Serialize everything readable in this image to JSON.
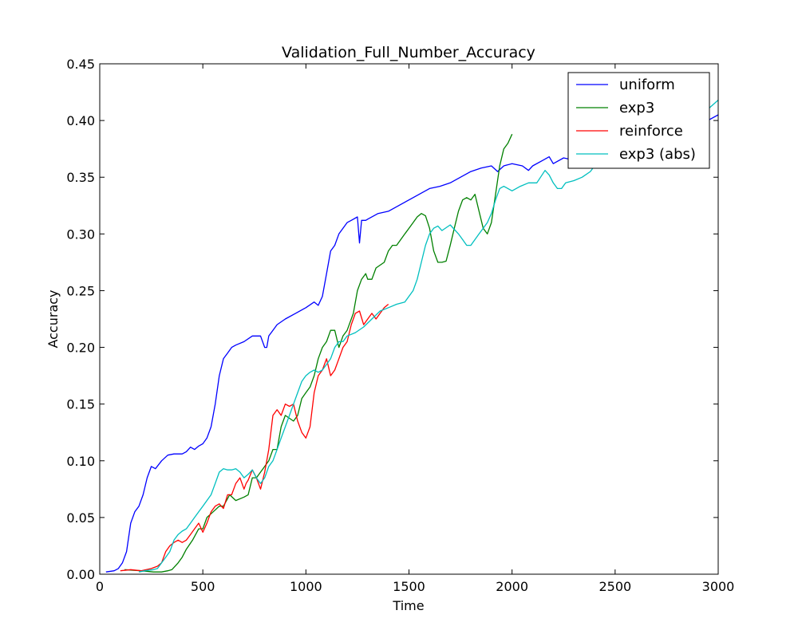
{
  "chart_data": {
    "type": "line",
    "title": "Validation_Full_Number_Accuracy",
    "xlabel": "Time",
    "ylabel": "Accuracy",
    "xlim": [
      0,
      3000
    ],
    "ylim": [
      0,
      0.45
    ],
    "xticks": [
      0,
      500,
      1000,
      1500,
      2000,
      2500,
      3000
    ],
    "xtick_labels": [
      "0",
      "500",
      "1000",
      "1500",
      "2000",
      "2500",
      "3000"
    ],
    "yticks": [
      0,
      0.05,
      0.1,
      0.15,
      0.2,
      0.25,
      0.3,
      0.35,
      0.4,
      0.45
    ],
    "ytick_labels": [
      "0.00",
      "0.05",
      "0.10",
      "0.15",
      "0.20",
      "0.25",
      "0.30",
      "0.35",
      "0.40",
      "0.45"
    ],
    "grid": false,
    "legend_position": "top-right",
    "series": [
      {
        "name": "uniform",
        "color": "#0000ff",
        "x": [
          30,
          70,
          90,
          110,
          130,
          150,
          170,
          190,
          210,
          230,
          250,
          270,
          300,
          330,
          360,
          400,
          420,
          440,
          460,
          480,
          500,
          520,
          540,
          560,
          580,
          600,
          620,
          640,
          660,
          700,
          740,
          760,
          780,
          800,
          810,
          820,
          840,
          860,
          900,
          950,
          1000,
          1040,
          1060,
          1080,
          1100,
          1120,
          1140,
          1160,
          1180,
          1200,
          1220,
          1250,
          1260,
          1270,
          1290,
          1300,
          1350,
          1400,
          1450,
          1500,
          1550,
          1600,
          1650,
          1700,
          1750,
          1800,
          1850,
          1900,
          1930,
          1960,
          2000,
          2050,
          2080,
          2100,
          2150,
          2180,
          2200,
          2250,
          2300,
          2350,
          2400,
          2500,
          2600,
          2700,
          2800,
          2900,
          3000
        ],
        "y": [
          0.002,
          0.003,
          0.005,
          0.01,
          0.02,
          0.045,
          0.055,
          0.06,
          0.07,
          0.085,
          0.095,
          0.093,
          0.1,
          0.105,
          0.106,
          0.106,
          0.108,
          0.112,
          0.11,
          0.113,
          0.115,
          0.12,
          0.13,
          0.15,
          0.175,
          0.19,
          0.195,
          0.2,
          0.202,
          0.205,
          0.21,
          0.21,
          0.21,
          0.2,
          0.2,
          0.21,
          0.215,
          0.22,
          0.225,
          0.23,
          0.235,
          0.24,
          0.237,
          0.245,
          0.265,
          0.285,
          0.29,
          0.3,
          0.305,
          0.31,
          0.312,
          0.315,
          0.292,
          0.312,
          0.312,
          0.313,
          0.318,
          0.32,
          0.325,
          0.33,
          0.335,
          0.34,
          0.342,
          0.345,
          0.35,
          0.355,
          0.358,
          0.36,
          0.355,
          0.36,
          0.362,
          0.36,
          0.356,
          0.36,
          0.365,
          0.368,
          0.362,
          0.367,
          0.365,
          0.37,
          0.373,
          0.378,
          0.382,
          0.388,
          0.39,
          0.395,
          0.405
        ]
      },
      {
        "name": "exp3",
        "color": "#008000",
        "x": [
          120,
          200,
          260,
          300,
          330,
          350,
          380,
          400,
          420,
          450,
          480,
          500,
          520,
          550,
          580,
          600,
          630,
          660,
          700,
          720,
          740,
          760,
          780,
          800,
          820,
          840,
          860,
          880,
          900,
          940,
          960,
          980,
          1000,
          1020,
          1040,
          1060,
          1080,
          1100,
          1120,
          1140,
          1160,
          1180,
          1200,
          1230,
          1250,
          1270,
          1290,
          1300,
          1320,
          1340,
          1380,
          1400,
          1420,
          1440,
          1460,
          1480,
          1500,
          1520,
          1540,
          1560,
          1580,
          1600,
          1620,
          1640,
          1660,
          1680,
          1700,
          1720,
          1740,
          1760,
          1780,
          1800,
          1820,
          1840,
          1860,
          1880,
          1900,
          1920,
          1940,
          1960,
          1980,
          2000
        ],
        "y": [
          0.004,
          0.003,
          0.002,
          0.002,
          0.003,
          0.004,
          0.01,
          0.015,
          0.022,
          0.03,
          0.04,
          0.04,
          0.05,
          0.055,
          0.06,
          0.06,
          0.07,
          0.065,
          0.068,
          0.07,
          0.085,
          0.085,
          0.09,
          0.095,
          0.1,
          0.11,
          0.11,
          0.13,
          0.14,
          0.135,
          0.14,
          0.155,
          0.16,
          0.165,
          0.175,
          0.19,
          0.2,
          0.205,
          0.215,
          0.215,
          0.2,
          0.21,
          0.215,
          0.23,
          0.25,
          0.26,
          0.265,
          0.26,
          0.26,
          0.27,
          0.275,
          0.285,
          0.29,
          0.29,
          0.295,
          0.3,
          0.305,
          0.31,
          0.315,
          0.318,
          0.316,
          0.305,
          0.285,
          0.275,
          0.275,
          0.276,
          0.29,
          0.305,
          0.32,
          0.33,
          0.332,
          0.33,
          0.335,
          0.32,
          0.305,
          0.3,
          0.31,
          0.335,
          0.36,
          0.375,
          0.38,
          0.388
        ]
      },
      {
        "name": "reinforce",
        "color": "#ff0000",
        "x": [
          100,
          150,
          200,
          250,
          280,
          300,
          320,
          340,
          360,
          380,
          400,
          420,
          440,
          460,
          480,
          500,
          520,
          540,
          560,
          580,
          600,
          620,
          640,
          660,
          680,
          700,
          710,
          720,
          740,
          760,
          780,
          800,
          820,
          840,
          860,
          880,
          900,
          920,
          940,
          960,
          980,
          1000,
          1020,
          1040,
          1060,
          1080,
          1100,
          1120,
          1140,
          1160,
          1180,
          1200,
          1220,
          1240,
          1260,
          1280,
          1300,
          1320,
          1340,
          1360,
          1380,
          1400
        ],
        "y": [
          0.003,
          0.004,
          0.003,
          0.005,
          0.007,
          0.01,
          0.02,
          0.025,
          0.028,
          0.03,
          0.028,
          0.03,
          0.035,
          0.04,
          0.045,
          0.037,
          0.045,
          0.055,
          0.06,
          0.062,
          0.058,
          0.07,
          0.07,
          0.08,
          0.085,
          0.075,
          0.08,
          0.083,
          0.092,
          0.085,
          0.075,
          0.09,
          0.11,
          0.14,
          0.145,
          0.14,
          0.15,
          0.148,
          0.15,
          0.135,
          0.125,
          0.12,
          0.13,
          0.16,
          0.175,
          0.18,
          0.19,
          0.175,
          0.18,
          0.19,
          0.2,
          0.205,
          0.22,
          0.23,
          0.232,
          0.22,
          0.225,
          0.23,
          0.225,
          0.23,
          0.235,
          0.238
        ]
      },
      {
        "name": "exp3 (abs)",
        "color": "#00bfbf",
        "x": [
          190,
          220,
          260,
          280,
          300,
          320,
          340,
          360,
          380,
          400,
          420,
          440,
          460,
          480,
          500,
          520,
          540,
          560,
          580,
          600,
          620,
          640,
          660,
          680,
          700,
          720,
          740,
          760,
          780,
          800,
          820,
          840,
          860,
          880,
          900,
          920,
          940,
          960,
          980,
          1000,
          1020,
          1040,
          1060,
          1080,
          1100,
          1120,
          1140,
          1160,
          1180,
          1200,
          1240,
          1280,
          1320,
          1360,
          1400,
          1440,
          1480,
          1520,
          1540,
          1560,
          1580,
          1600,
          1620,
          1640,
          1660,
          1700,
          1740,
          1760,
          1780,
          1800,
          1820,
          1840,
          1860,
          1880,
          1900,
          1920,
          1940,
          1960,
          2000,
          2040,
          2080,
          2120,
          2160,
          2180,
          2200,
          2220,
          2240,
          2260,
          2300,
          2340,
          2380,
          2400,
          2450,
          2500,
          2550,
          2600,
          2650,
          2700,
          2750,
          2800,
          2850,
          2900,
          2950,
          3000
        ],
        "y": [
          0.002,
          0.003,
          0.004,
          0.005,
          0.01,
          0.015,
          0.02,
          0.03,
          0.035,
          0.038,
          0.04,
          0.045,
          0.05,
          0.055,
          0.06,
          0.065,
          0.07,
          0.08,
          0.09,
          0.093,
          0.092,
          0.092,
          0.093,
          0.09,
          0.085,
          0.088,
          0.092,
          0.085,
          0.08,
          0.085,
          0.095,
          0.1,
          0.11,
          0.12,
          0.13,
          0.14,
          0.15,
          0.16,
          0.17,
          0.175,
          0.178,
          0.18,
          0.178,
          0.18,
          0.185,
          0.19,
          0.2,
          0.205,
          0.205,
          0.21,
          0.213,
          0.218,
          0.225,
          0.232,
          0.235,
          0.238,
          0.24,
          0.25,
          0.26,
          0.275,
          0.29,
          0.3,
          0.305,
          0.307,
          0.303,
          0.308,
          0.3,
          0.295,
          0.29,
          0.29,
          0.295,
          0.3,
          0.305,
          0.31,
          0.318,
          0.33,
          0.34,
          0.342,
          0.338,
          0.342,
          0.345,
          0.345,
          0.356,
          0.352,
          0.345,
          0.34,
          0.34,
          0.345,
          0.347,
          0.35,
          0.355,
          0.36,
          0.37,
          0.375,
          0.378,
          0.38,
          0.383,
          0.385,
          0.39,
          0.395,
          0.4,
          0.405,
          0.41,
          0.418
        ]
      }
    ]
  }
}
